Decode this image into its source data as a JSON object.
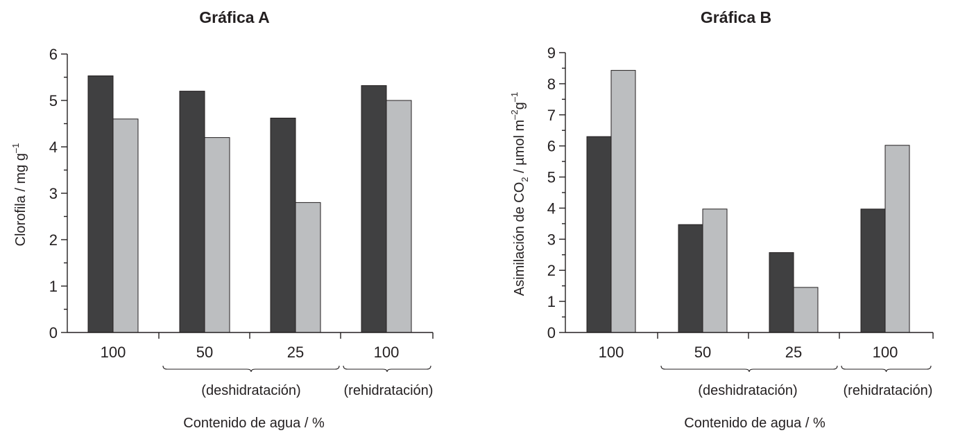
{
  "chart_data": [
    {
      "type": "bar",
      "title": "Gráfica A",
      "ylabel": "Clorofila / mg g",
      "ylabel_sup": "–1",
      "xlabel": "Contenido de agua / %",
      "categories": [
        "100",
        "50",
        "25",
        "100"
      ],
      "groups": [
        "(deshidratación)",
        "(rehidratación)"
      ],
      "ylim": [
        0,
        6
      ],
      "yticks": [
        "0",
        "1",
        "2",
        "3",
        "4",
        "5",
        "6"
      ],
      "series": [
        {
          "color": "#404041",
          "values": [
            5.53,
            5.2,
            4.62,
            5.32
          ]
        },
        {
          "color": "#bcbec0",
          "values": [
            4.6,
            4.2,
            2.8,
            5.0
          ]
        }
      ],
      "grid": false
    },
    {
      "type": "bar",
      "title": "Gráfica B",
      "ylabel": "Asimilación de CO",
      "ylabel_sub": "2",
      "ylabel_units": " / µmol m",
      "ylabel_sup1": "–2",
      "ylabel_units2": "g",
      "ylabel_sup2": "–1",
      "xlabel": "Contenido de agua / %",
      "categories": [
        "100",
        "50",
        "25",
        "100"
      ],
      "groups": [
        "(deshidratación)",
        "(rehidratación)"
      ],
      "ylim": [
        0,
        9
      ],
      "yticks": [
        "0",
        "1",
        "2",
        "3",
        "4",
        "5",
        "6",
        "7",
        "8",
        "9"
      ],
      "series": [
        {
          "color": "#404041",
          "values": [
            6.3,
            3.47,
            2.57,
            3.97
          ]
        },
        {
          "color": "#bcbec0",
          "values": [
            8.43,
            3.97,
            1.45,
            6.02
          ]
        }
      ],
      "grid": false
    }
  ]
}
